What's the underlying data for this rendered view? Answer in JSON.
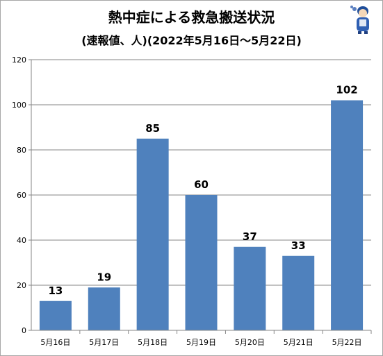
{
  "title": "熱中症による救急搬送状況",
  "subtitle": "(速報値、人)(2022年5月16日～5月22日)",
  "colors": {
    "bar": "#4f81bd",
    "grid": "#868686",
    "axis": "#868686"
  },
  "chart_data": {
    "type": "bar",
    "categories": [
      "5月16日",
      "5月17日",
      "5月18日",
      "5月19日",
      "5月20日",
      "5月21日",
      "5月22日"
    ],
    "values": [
      13,
      19,
      85,
      60,
      37,
      33,
      102
    ],
    "yticks": [
      0,
      20,
      40,
      60,
      80,
      100,
      120
    ],
    "ylim": [
      0,
      120
    ],
    "grid": true,
    "xlabel": "",
    "ylabel": ""
  }
}
